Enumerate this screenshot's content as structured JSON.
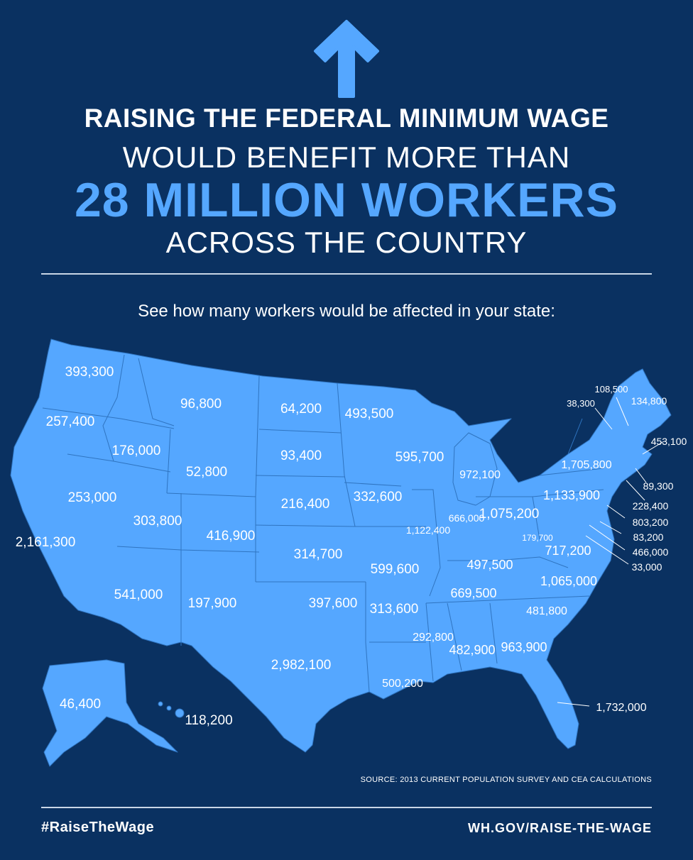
{
  "header": {
    "line1": "RAISING THE FEDERAL MINIMUM WAGE",
    "line2": "WOULD BENEFIT MORE THAN",
    "line3": "28 MILLION WORKERS",
    "line4": "ACROSS THE COUNTRY"
  },
  "prompt": "See how many workers would be affected in your state:",
  "colors": {
    "background": "#0a3161",
    "map_fill": "#55a7ff",
    "accent": "#55a7ff",
    "text": "#ffffff"
  },
  "icons": {
    "top_arrow": "arrow-up-icon"
  },
  "states": [
    {
      "state": "WA",
      "workers": "393,300"
    },
    {
      "state": "OR",
      "workers": "257,400"
    },
    {
      "state": "CA",
      "workers": "2,161,300"
    },
    {
      "state": "NV",
      "workers": "253,000"
    },
    {
      "state": "ID",
      "workers": "176,000"
    },
    {
      "state": "MT",
      "workers": "96,800"
    },
    {
      "state": "WY",
      "workers": "52,800"
    },
    {
      "state": "UT",
      "workers": "303,800"
    },
    {
      "state": "AZ",
      "workers": "541,000"
    },
    {
      "state": "CO",
      "workers": "416,900"
    },
    {
      "state": "NM",
      "workers": "197,900"
    },
    {
      "state": "ND",
      "workers": "64,200"
    },
    {
      "state": "SD",
      "workers": "93,400"
    },
    {
      "state": "NE",
      "workers": "216,400"
    },
    {
      "state": "KS",
      "workers": "314,700"
    },
    {
      "state": "OK",
      "workers": "397,600"
    },
    {
      "state": "TX",
      "workers": "2,982,100"
    },
    {
      "state": "MN",
      "workers": "493,500"
    },
    {
      "state": "IA",
      "workers": "332,600"
    },
    {
      "state": "MO",
      "workers": "599,600"
    },
    {
      "state": "AR",
      "workers": "313,600"
    },
    {
      "state": "LA",
      "workers": "500,200"
    },
    {
      "state": "WI",
      "workers": "595,700"
    },
    {
      "state": "IL",
      "workers": "1,122,400"
    },
    {
      "state": "MI",
      "workers": "972,100"
    },
    {
      "state": "IN",
      "workers": "666,000"
    },
    {
      "state": "OH",
      "workers": "1,075,200"
    },
    {
      "state": "KY",
      "workers": "497,500"
    },
    {
      "state": "TN",
      "workers": "669,500"
    },
    {
      "state": "MS",
      "workers": "292,800"
    },
    {
      "state": "AL",
      "workers": "482,900"
    },
    {
      "state": "GA",
      "workers": "963,900"
    },
    {
      "state": "FL",
      "workers": "1,732,000"
    },
    {
      "state": "SC",
      "workers": "481,800"
    },
    {
      "state": "NC",
      "workers": "1,065,000"
    },
    {
      "state": "VA",
      "workers": "717,200"
    },
    {
      "state": "WV",
      "workers": "179,700"
    },
    {
      "state": "PA",
      "workers": "1,133,900"
    },
    {
      "state": "NY",
      "workers": "1,705,800"
    },
    {
      "state": "VT",
      "workers": "38,300"
    },
    {
      "state": "NH",
      "workers": "108,500"
    },
    {
      "state": "ME",
      "workers": "134,800"
    },
    {
      "state": "MA",
      "workers": "453,100"
    },
    {
      "state": "RI",
      "workers": "89,300"
    },
    {
      "state": "CT",
      "workers": "228,400"
    },
    {
      "state": "NJ",
      "workers": "803,200"
    },
    {
      "state": "DE",
      "workers": "83,200"
    },
    {
      "state": "MD",
      "workers": "466,000"
    },
    {
      "state": "DC",
      "workers": "33,000"
    },
    {
      "state": "AK",
      "workers": "46,400"
    },
    {
      "state": "HI",
      "workers": "118,200"
    }
  ],
  "source": "SOURCE: 2013 CURRENT POPULATION SURVEY AND CEA CALCULATIONS",
  "footer": {
    "hashtag": "#RaiseTheWage",
    "url": "WH.GOV/RAISE-THE-WAGE"
  }
}
